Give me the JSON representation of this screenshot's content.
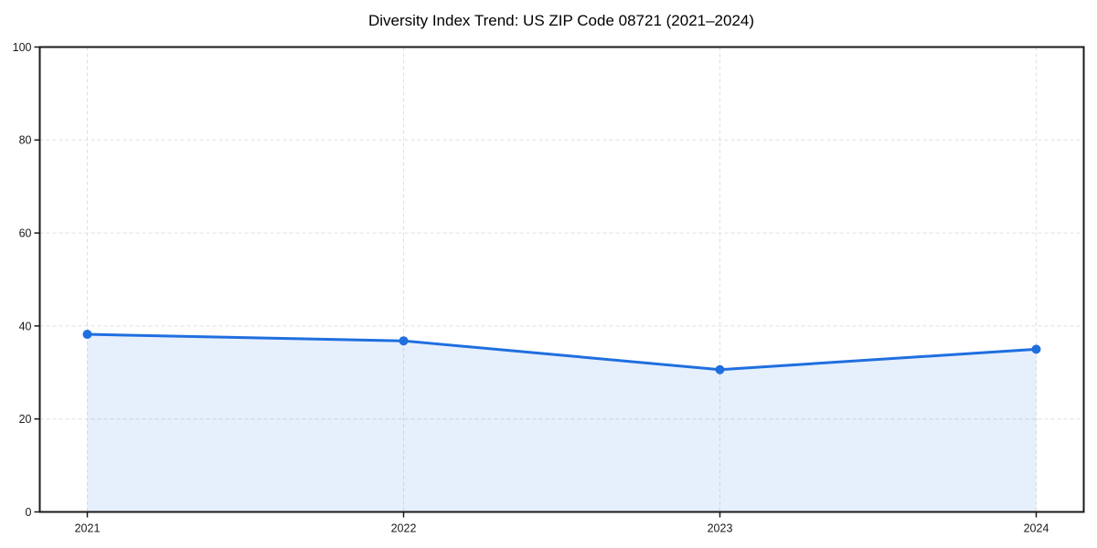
{
  "chart_data": {
    "type": "area",
    "title": "Diversity Index Trend: US ZIP Code 08721 (2021–2024)",
    "categories": [
      "2021",
      "2022",
      "2023",
      "2024"
    ],
    "series": [
      {
        "name": "Diversity Index",
        "values": [
          38.2,
          36.8,
          30.6,
          35.0
        ]
      }
    ],
    "xlabel": "",
    "ylabel": "",
    "ylim": [
      0,
      100
    ],
    "yticks": [
      0,
      20,
      40,
      60,
      80,
      100
    ],
    "grid": "dashed both axes",
    "legend": "none",
    "colors": {
      "line": "#1f6fe0",
      "marker": "#1f6fe0",
      "area_fill": "rgba(31,111,224,0.11)",
      "gridline": "#e0e0e0",
      "spine": "#1a1a1a",
      "background": "#ffffff"
    },
    "marker_style": "circle",
    "marker_radius": 5,
    "line_width": 3
  }
}
